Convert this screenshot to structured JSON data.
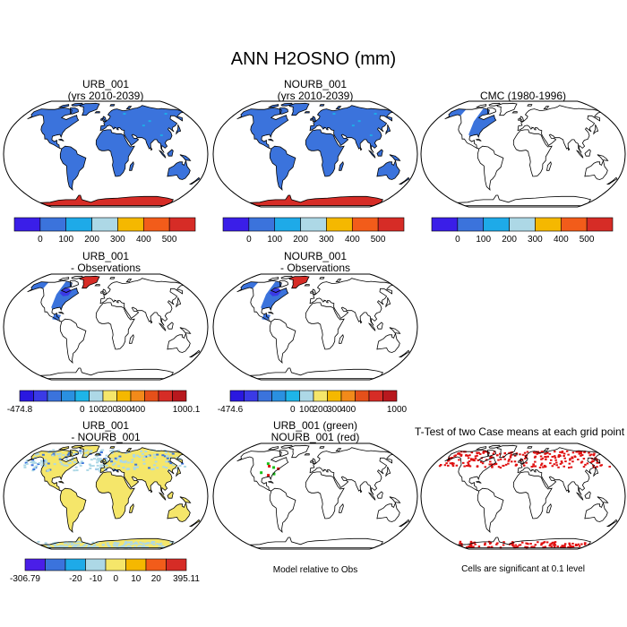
{
  "title": "ANN H2OSNO (mm)",
  "colors": {
    "abs": [
      "#3a1ee8",
      "#3b73dc",
      "#1eaae8",
      "#add8e6",
      "#f5b800",
      "#f25c1a",
      "#d62c26"
    ],
    "diff_obs": [
      "#2a18e0",
      "#3a3ae6",
      "#3b73dc",
      "#2a90e0",
      "#1eb4e8",
      "#add8e6",
      "#f5e66a",
      "#f5b800",
      "#f28a1a",
      "#e5501a",
      "#d62c26",
      "#b8181e"
    ],
    "diff_case": [
      "#4a1ee8",
      "#3b73dc",
      "#1eaae8",
      "#add8e6",
      "#f5e66a",
      "#f5b800",
      "#f25c1a",
      "#d62c26"
    ],
    "snow_blue": "#3b73dc",
    "snow_red": "#d62c26",
    "snow_yellow": "#f5e66a",
    "sig_red": "#e01010",
    "green": "#18c018"
  },
  "panels": [
    {
      "id": "urb",
      "title1": "URB_001",
      "title2": "(yrs 2010-2039)"
    },
    {
      "id": "nourb",
      "title1": "NOURB_001",
      "title2": "(yrs 2010-2039)"
    },
    {
      "id": "cmc",
      "title1": "CMC (1980-1996)",
      "title2": ""
    },
    {
      "id": "urb_obs",
      "title1": "URB_001",
      "title2": "- Observations"
    },
    {
      "id": "nourb_obs",
      "title1": "NOURB_001",
      "title2": "- Observations"
    },
    {
      "id": "urb_nourb",
      "title1": "URB_001",
      "title2": "- NOURB_001"
    },
    {
      "id": "rel",
      "title1": "URB_001 (green)",
      "title2": "NOURB_001 (red)"
    },
    {
      "id": "ttest",
      "title1": "T-Test of two Case means at each grid point",
      "title2": ""
    }
  ],
  "notes": {
    "rel": "Model relative to Obs",
    "ttest": "Cells are significant at 0.1 level"
  },
  "chart_data": [
    {
      "type": "heatmap",
      "title": "URB_001 (yrs 2010-2039)",
      "colorbar_ticks": [
        "0",
        "100",
        "200",
        "300",
        "400",
        "500"
      ]
    },
    {
      "type": "heatmap",
      "title": "NOURB_001 (yrs 2010-2039)",
      "colorbar_ticks": [
        "0",
        "100",
        "200",
        "300",
        "400",
        "500"
      ]
    },
    {
      "type": "heatmap",
      "title": "CMC (1980-1996)",
      "colorbar_ticks": [
        "0",
        "100",
        "200",
        "300",
        "400",
        "500"
      ]
    },
    {
      "type": "heatmap",
      "title": "URB_001 - Observations",
      "colorbar_ticks": [
        "-474.8",
        "0",
        "100",
        "200",
        "300",
        "400",
        "1000.1"
      ]
    },
    {
      "type": "heatmap",
      "title": "NOURB_001 - Observations",
      "colorbar_ticks": [
        "-474.6",
        "0",
        "100",
        "200",
        "300",
        "400",
        "1000"
      ]
    },
    {
      "type": "heatmap",
      "title": "URB_001 - NOURB_001",
      "colorbar_ticks": [
        "-306.79",
        "-20",
        "-10",
        "0",
        "10",
        "20",
        "395.11"
      ]
    },
    {
      "type": "heatmap",
      "title": "URB_001 (green) NOURB_001 (red)"
    },
    {
      "type": "heatmap",
      "title": "T-Test of two Case means at each grid point"
    }
  ]
}
